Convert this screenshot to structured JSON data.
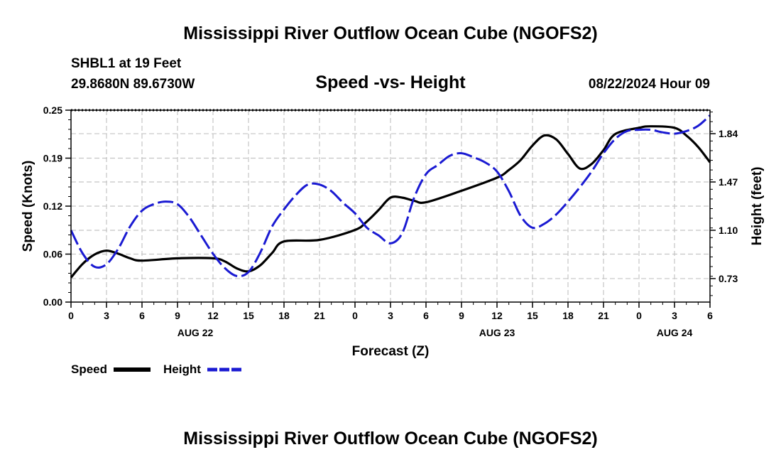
{
  "page": {
    "title": "Mississippi River Outflow Ocean Cube (NGOFS2)",
    "station": "SHBL1 at 19 Feet",
    "coords": "29.8680N  89.6730W",
    "subtitle": "Speed -vs- Height",
    "datetime": "08/22/2024 Hour 09",
    "footer_title": "Mississippi River Outflow Ocean Cube (NGOFS2)"
  },
  "chart_data": {
    "type": "line",
    "title": "Speed -vs- Height",
    "xlabel": "Forecast (Z)",
    "ylabel_left": "Speed (Knots)",
    "ylabel_right": "Height (feet)",
    "x_range_hours": [
      0,
      54
    ],
    "x_tick_labels": [
      "0",
      "3",
      "6",
      "9",
      "12",
      "15",
      "18",
      "21",
      "0",
      "3",
      "6",
      "9",
      "12",
      "15",
      "18",
      "21",
      "0",
      "3",
      "6"
    ],
    "date_labels": [
      {
        "label": "AUG 22",
        "hour": 10.5
      },
      {
        "label": "AUG 23",
        "hour": 36
      },
      {
        "label": "AUG 24",
        "hour": 51
      }
    ],
    "y_left": {
      "range": [
        0,
        0.25
      ],
      "ticks": [
        "0.00",
        "0.06",
        "0.12",
        "0.19",
        "0.25"
      ],
      "tick_values": [
        0,
        0.0625,
        0.125,
        0.1875,
        0.25
      ]
    },
    "y_right": {
      "range": [
        0.55,
        2.02
      ],
      "ticks": [
        "0.73",
        "1.10",
        "1.47",
        "1.84"
      ],
      "tick_values": [
        0.73,
        1.1,
        1.47,
        1.84
      ]
    },
    "grid": true,
    "legend": {
      "position": "bottom-left",
      "items": [
        "Speed",
        "Height"
      ]
    },
    "series": [
      {
        "name": "Speed",
        "axis": "left",
        "color": "#000000",
        "style": "solid",
        "points": [
          [
            0,
            0.032
          ],
          [
            1,
            0.05
          ],
          [
            2,
            0.062
          ],
          [
            3,
            0.067
          ],
          [
            4,
            0.063
          ],
          [
            5,
            0.057
          ],
          [
            6,
            0.054
          ],
          [
            9,
            0.057
          ],
          [
            12,
            0.057
          ],
          [
            13,
            0.053
          ],
          [
            14,
            0.044
          ],
          [
            15,
            0.04
          ],
          [
            16,
            0.048
          ],
          [
            17,
            0.064
          ],
          [
            18,
            0.079
          ],
          [
            21,
            0.081
          ],
          [
            24,
            0.094
          ],
          [
            25,
            0.105
          ],
          [
            26,
            0.12
          ],
          [
            27,
            0.136
          ],
          [
            28,
            0.136
          ],
          [
            29,
            0.132
          ],
          [
            30,
            0.13
          ],
          [
            33,
            0.145
          ],
          [
            36,
            0.162
          ],
          [
            37,
            0.172
          ],
          [
            38,
            0.185
          ],
          [
            39,
            0.204
          ],
          [
            40,
            0.217
          ],
          [
            41,
            0.212
          ],
          [
            42,
            0.193
          ],
          [
            43,
            0.174
          ],
          [
            44,
            0.18
          ],
          [
            45,
            0.198
          ],
          [
            46,
            0.219
          ],
          [
            48,
            0.227
          ],
          [
            49,
            0.229
          ],
          [
            51,
            0.227
          ],
          [
            52,
            0.217
          ],
          [
            53,
            0.202
          ],
          [
            54,
            0.182
          ]
        ]
      },
      {
        "name": "Height",
        "axis": "right",
        "color": "#1a1ad2",
        "style": "dashed",
        "points": [
          [
            0,
            1.1
          ],
          [
            1,
            0.92
          ],
          [
            2,
            0.82
          ],
          [
            3,
            0.84
          ],
          [
            4,
            0.96
          ],
          [
            5,
            1.13
          ],
          [
            6,
            1.25
          ],
          [
            7,
            1.3
          ],
          [
            8,
            1.32
          ],
          [
            9,
            1.3
          ],
          [
            10,
            1.2
          ],
          [
            11,
            1.06
          ],
          [
            12,
            0.92
          ],
          [
            13,
            0.81
          ],
          [
            14,
            0.75
          ],
          [
            15,
            0.78
          ],
          [
            16,
            0.93
          ],
          [
            17,
            1.13
          ],
          [
            18,
            1.26
          ],
          [
            19,
            1.37
          ],
          [
            20,
            1.45
          ],
          [
            21,
            1.45
          ],
          [
            22,
            1.4
          ],
          [
            23,
            1.31
          ],
          [
            24,
            1.23
          ],
          [
            25,
            1.12
          ],
          [
            26,
            1.06
          ],
          [
            27,
            1.0
          ],
          [
            28,
            1.08
          ],
          [
            29,
            1.35
          ],
          [
            30,
            1.53
          ],
          [
            31,
            1.6
          ],
          [
            32,
            1.67
          ],
          [
            33,
            1.69
          ],
          [
            34,
            1.66
          ],
          [
            35,
            1.62
          ],
          [
            36,
            1.55
          ],
          [
            37,
            1.4
          ],
          [
            38,
            1.21
          ],
          [
            39,
            1.12
          ],
          [
            40,
            1.15
          ],
          [
            41,
            1.22
          ],
          [
            42,
            1.32
          ],
          [
            43,
            1.43
          ],
          [
            44,
            1.55
          ],
          [
            45,
            1.69
          ],
          [
            46,
            1.8
          ],
          [
            47,
            1.86
          ],
          [
            48,
            1.87
          ],
          [
            49,
            1.87
          ],
          [
            50,
            1.85
          ],
          [
            51,
            1.84
          ],
          [
            52,
            1.86
          ],
          [
            53,
            1.9
          ],
          [
            54,
            1.98
          ]
        ]
      }
    ]
  }
}
